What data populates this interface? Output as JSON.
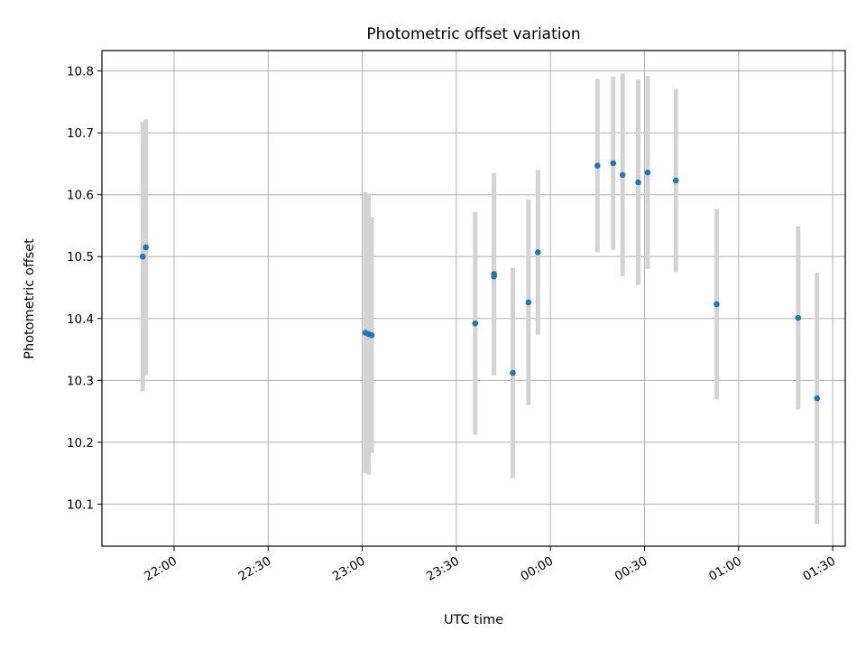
{
  "chart_data": {
    "type": "scatter",
    "title": "Photometric offset variation",
    "xlabel": "UTC time",
    "ylabel": "Photometric offset",
    "grid": true,
    "x_ticks": [
      "22:00",
      "22:30",
      "23:00",
      "23:30",
      "00:00",
      "00:30",
      "01:00",
      "01:30"
    ],
    "y_ticks": [
      "10.1",
      "10.2",
      "10.3",
      "10.4",
      "10.5",
      "10.6",
      "10.7",
      "10.8"
    ],
    "xlim": [
      "21:37",
      "01:34"
    ],
    "ylim": [
      10.032,
      10.833
    ],
    "colors": {
      "point": "#1f77b4",
      "errorbar": "#d3d3d3",
      "grid": "#b0b0b0"
    },
    "series": [
      {
        "points": [
          {
            "x": "21:50",
            "y": 10.5,
            "yerr": 0.218
          },
          {
            "x": "21:51",
            "y": 10.515,
            "yerr": 0.207
          },
          {
            "x": "23:01",
            "y": 10.377,
            "yerr": 0.227
          },
          {
            "x": "23:02",
            "y": 10.375,
            "yerr": 0.227
          },
          {
            "x": "23:03",
            "y": 10.373,
            "yerr": 0.19
          },
          {
            "x": "23:36",
            "y": 10.392,
            "yerr": 0.18
          },
          {
            "x": "23:42",
            "y": 10.468,
            "yerr": 0.16
          },
          {
            "x": "23:42",
            "y": 10.472,
            "yerr": 0.163
          },
          {
            "x": "23:48",
            "y": 10.312,
            "yerr": 0.17
          },
          {
            "x": "23:53",
            "y": 10.426,
            "yerr": 0.166
          },
          {
            "x": "23:56",
            "y": 10.507,
            "yerr": 0.133
          },
          {
            "x": "00:15",
            "y": 10.647,
            "yerr": 0.14
          },
          {
            "x": "00:20",
            "y": 10.651,
            "yerr": 0.14
          },
          {
            "x": "00:23",
            "y": 10.632,
            "yerr": 0.164
          },
          {
            "x": "00:28",
            "y": 10.62,
            "yerr": 0.166
          },
          {
            "x": "00:31",
            "y": 10.636,
            "yerr": 0.156
          },
          {
            "x": "00:40",
            "y": 10.623,
            "yerr": 0.148
          },
          {
            "x": "00:53",
            "y": 10.423,
            "yerr": 0.154
          },
          {
            "x": "01:19",
            "y": 10.401,
            "yerr": 0.148
          },
          {
            "x": "01:25",
            "y": 10.271,
            "yerr": 0.203
          }
        ]
      }
    ]
  }
}
